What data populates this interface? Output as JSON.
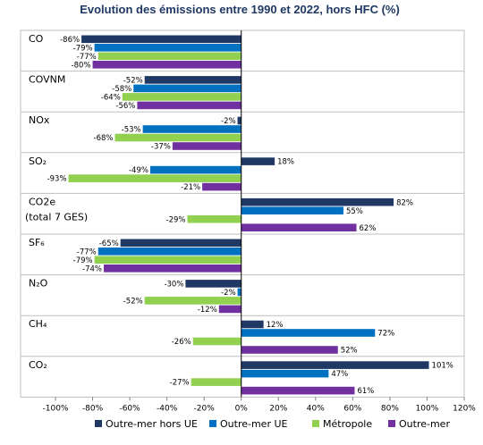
{
  "chart_data": {
    "type": "bar",
    "orientation": "horizontal",
    "title": "Evolution des émissions entre 1990 et 2022, hors HFC (%)",
    "xlim": [
      -100,
      120
    ],
    "x_ticks": [
      "-100%",
      "-80%",
      "-60%",
      "-40%",
      "-20%",
      "0%",
      "20%",
      "40%",
      "60%",
      "80%",
      "100%",
      "120%"
    ],
    "grid": false,
    "legend_position": "bottom",
    "categories": [
      {
        "line1": "CO",
        "line2": ""
      },
      {
        "line1": "COVNM",
        "line2": ""
      },
      {
        "line1": "NOx",
        "line2": ""
      },
      {
        "line1": "SO₂",
        "line2": ""
      },
      {
        "line1": "CO2e",
        "line2": "(total 7 GES)"
      },
      {
        "line1": "SF₆",
        "line2": ""
      },
      {
        "line1": "N₂O",
        "line2": ""
      },
      {
        "line1": "CH₄",
        "line2": ""
      },
      {
        "line1": "CO₂",
        "line2": ""
      }
    ],
    "series": [
      {
        "name": "Outre-mer hors UE",
        "color": "#1f3864",
        "values": [
          -86,
          -52,
          -2,
          18,
          82,
          -65,
          -30,
          12,
          101
        ],
        "labels": [
          "-86%",
          "-52%",
          "-2%",
          "18%",
          "82%",
          "-65%",
          "-30%",
          "12%",
          "101%"
        ]
      },
      {
        "name": "Outre-mer UE",
        "color": "#0070c0",
        "values": [
          -79,
          -58,
          -53,
          -49,
          55,
          -77,
          -2,
          72,
          47
        ],
        "labels": [
          "-79%",
          "-58%",
          "-53%",
          "-49%",
          "55%",
          "-77%",
          "-2%",
          "72%",
          "47%"
        ]
      },
      {
        "name": "Métropole",
        "color": "#92d050",
        "values": [
          -77,
          -64,
          -68,
          -93,
          -29,
          -79,
          -52,
          -26,
          -27
        ],
        "labels": [
          "-77%",
          "-64%",
          "-68%",
          "-93%",
          "-29%",
          "-79%",
          "-52%",
          "-26%",
          "-27%"
        ]
      },
      {
        "name": "Outre-mer",
        "color": "#7030a0",
        "values": [
          -80,
          -56,
          -37,
          -21,
          62,
          -74,
          -12,
          52,
          61
        ],
        "labels": [
          "-80%",
          "-56%",
          "-37%",
          "-21%",
          "62%",
          "-74%",
          "-12%",
          "52%",
          "61%"
        ]
      }
    ]
  }
}
